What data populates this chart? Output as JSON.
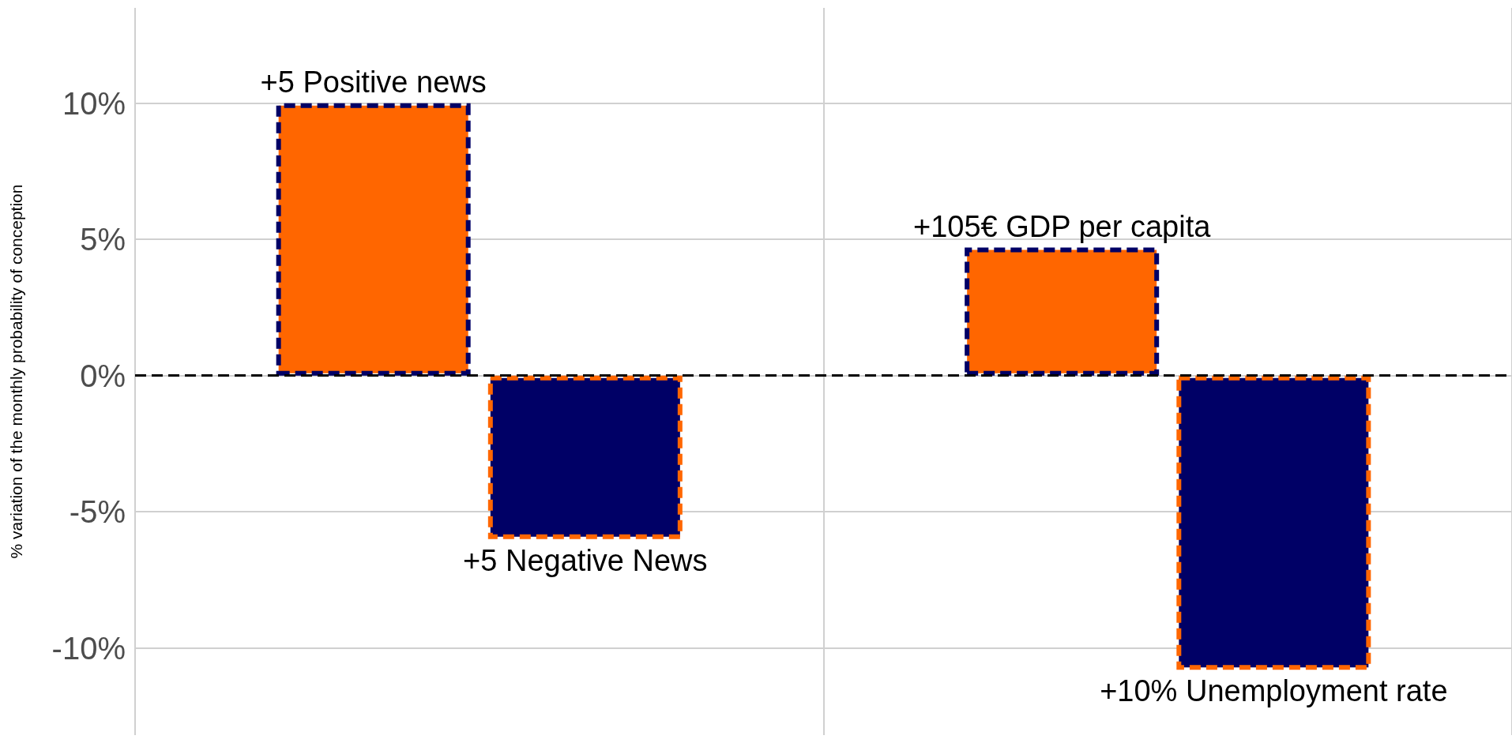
{
  "chart_data": {
    "type": "bar",
    "ylabel": "% variation of the monthly probability of conception",
    "categories": [
      null,
      null
    ],
    "series": [
      {
        "color": "#ff6600",
        "values": [
          10,
          4.7
        ]
      },
      {
        "color": "#000066",
        "values": [
          -6.0,
          -10.8
        ]
      }
    ],
    "annotations": [
      {
        "text": "+5 Positive news",
        "y": 10
      },
      {
        "text": "+5 Negative News",
        "y": -6.0
      },
      {
        "text": "+105€ GDP per capita",
        "y": 4.7
      },
      {
        "text": "+10% Unemployment rate",
        "y": -10.8
      }
    ],
    "ylim": [
      -13.2,
      13.5
    ],
    "yticks": [
      {
        "value": -10,
        "label": "-10%"
      },
      {
        "value": -5,
        "label": "-5%"
      },
      {
        "value": 0,
        "label": "0%"
      },
      {
        "value": 5,
        "label": "5%"
      },
      {
        "value": 10,
        "label": "10%"
      }
    ],
    "tick_labels": "y",
    "grid": true,
    "line_style": "dashed",
    "ref_lines": [
      {
        "axis": "y",
        "value": 0,
        "label": null,
        "color": "#000000",
        "line_style": "dashed"
      }
    ]
  }
}
